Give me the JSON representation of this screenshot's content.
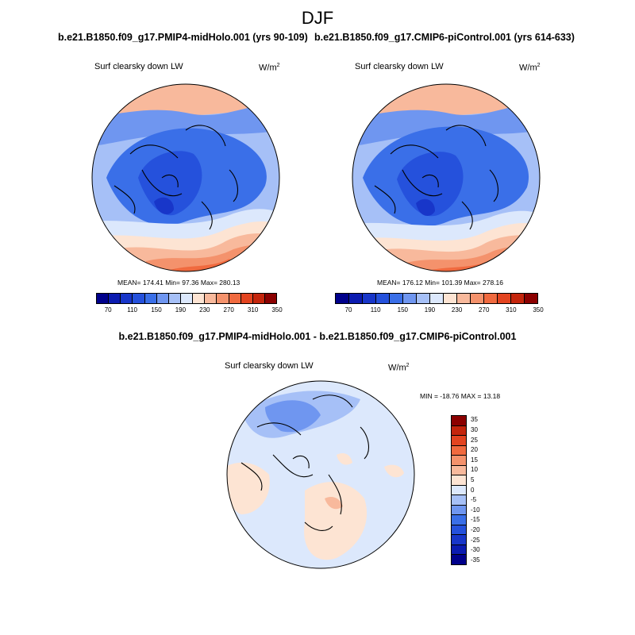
{
  "season": "DJF",
  "left_run_title": "b.e21.B1850.f09_g17.PMIP4-midHolo.001 (yrs 90-109)",
  "right_run_title": "b.e21.B1850.f09_g17.CMIP6-piControl.001 (yrs 614-633)",
  "variable_label": "Surf clearsky down LW",
  "units": {
    "base": "W/m",
    "exp": "2"
  },
  "left_panel": {
    "stats": "MEAN= 174.41  Min=  97.36  Max= 280.13"
  },
  "right_panel": {
    "stats": "MEAN= 176.12  Min= 101.39  Max= 278.16"
  },
  "colorbar": {
    "colors": [
      "#00008b",
      "#0b1bb0",
      "#1836c9",
      "#2551dc",
      "#3a6fe8",
      "#6f96f0",
      "#a6c0f7",
      "#dce8fc",
      "#fde4d3",
      "#f8b99c",
      "#f4926c",
      "#f06a3f",
      "#e34420",
      "#c4250c",
      "#8b0000"
    ],
    "labels": [
      "70",
      "110",
      "150",
      "190",
      "230",
      "270",
      "310",
      "350"
    ]
  },
  "diff_title": "b.e21.B1850.f09_g17.PMIP4-midHolo.001 - b.e21.B1850.f09_g17.CMIP6-piControl.001",
  "diff_panel": {
    "stats": "MIN = -18.76 MAX =  13.18",
    "colors": [
      "#8b0000",
      "#c4250c",
      "#e34420",
      "#f06a3f",
      "#f4926c",
      "#f8b99c",
      "#fde4d3",
      "#dce8fc",
      "#a6c0f7",
      "#6f96f0",
      "#3a6fe8",
      "#2551dc",
      "#1836c9",
      "#0b1bb0",
      "#00008b"
    ],
    "labels": [
      "35",
      "30",
      "25",
      "20",
      "15",
      "10",
      "5",
      "0",
      "-5",
      "-10",
      "-15",
      "-20",
      "-25",
      "-30",
      "-35"
    ]
  }
}
